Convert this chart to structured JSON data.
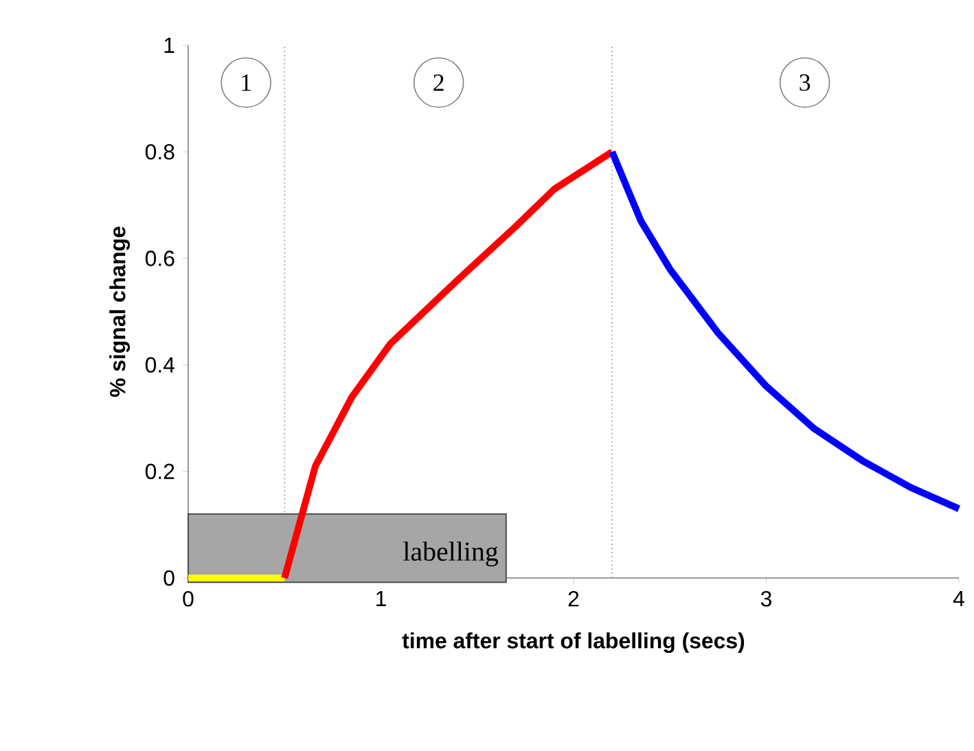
{
  "chart_data": {
    "type": "line",
    "xlabel": "time after start of labelling (secs)",
    "ylabel": "% signal change",
    "xlim": [
      0,
      4
    ],
    "ylim": [
      0,
      1
    ],
    "xticks": [
      0,
      1,
      2,
      3,
      4
    ],
    "yticks": [
      0,
      0.2,
      0.4,
      0.6,
      0.8,
      1
    ],
    "grid": false,
    "marker": "none",
    "line_style": "solid",
    "series": [
      {
        "color": "#ffff00",
        "x": [
          0,
          0.5
        ],
        "values": [
          0,
          0
        ]
      },
      {
        "color": "#ff0000",
        "x": [
          0.5,
          0.66,
          0.85,
          1.05,
          1.4,
          1.7,
          1.9,
          2.2
        ],
        "values": [
          0,
          0.21,
          0.34,
          0.44,
          0.56,
          0.66,
          0.73,
          0.8
        ]
      },
      {
        "color": "#0000ff",
        "x": [
          2.2,
          2.35,
          2.5,
          2.75,
          3,
          3.25,
          3.5,
          3.75,
          4
        ],
        "values": [
          0.8,
          0.67,
          0.58,
          0.46,
          0.36,
          0.28,
          0.22,
          0.17,
          0.13
        ]
      }
    ],
    "ref_lines": [
      {
        "axis": "x",
        "value": 0.5,
        "color": "#b0b0b0",
        "line_style": "dotted"
      },
      {
        "axis": "x",
        "value": 2.2,
        "color": "#b0b0b0",
        "line_style": "dotted"
      }
    ],
    "annotations": [
      {
        "text": "1",
        "x": 0.3,
        "y": 0.93
      },
      {
        "text": "2",
        "x": 1.3,
        "y": 0.93
      },
      {
        "text": "3",
        "x": 3.2,
        "y": 0.93
      }
    ],
    "bands": [
      {
        "axis": "x",
        "from": 0,
        "to": 1.65,
        "label": "labelling",
        "color": "#a6a6a6"
      }
    ]
  }
}
